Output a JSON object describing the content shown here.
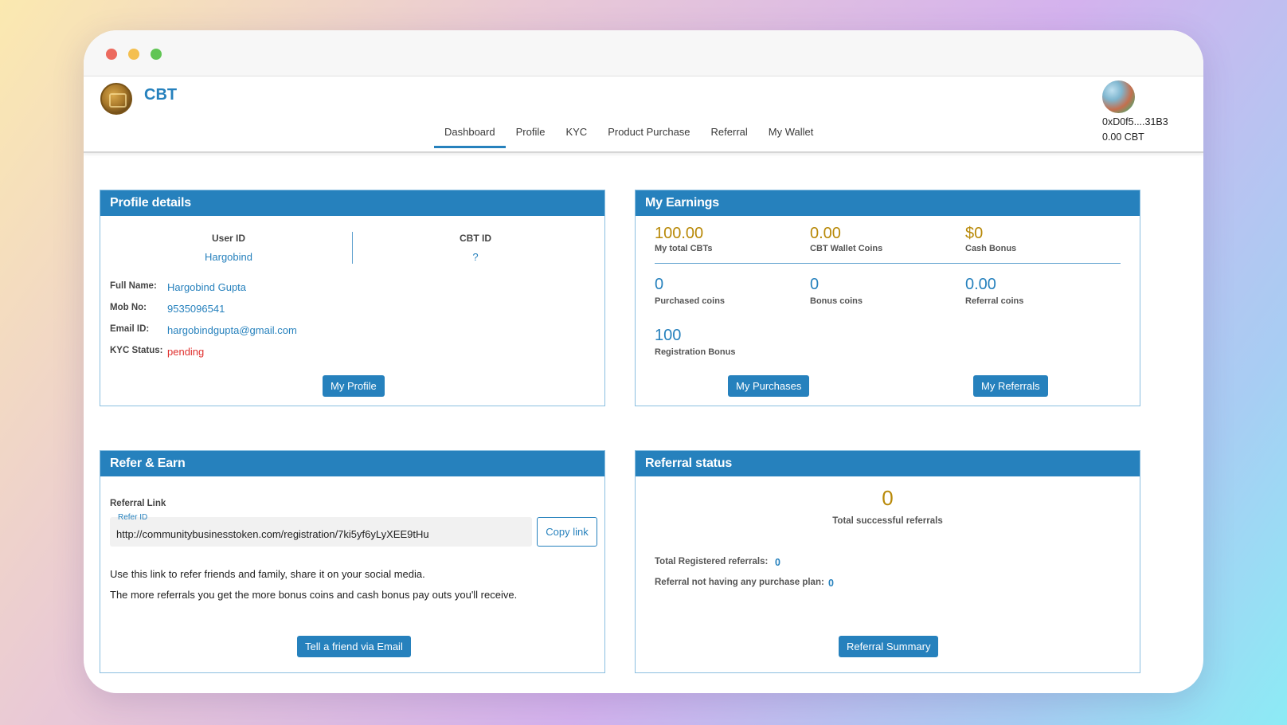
{
  "app": {
    "brand": "CBT",
    "nav": [
      "Dashboard",
      "Profile",
      "KYC",
      "Product Purchase",
      "Referral",
      "My Wallet"
    ],
    "active_nav": "Dashboard",
    "wallet_address": "0xD0f5....31B3",
    "wallet_balance": "0.00 CBT"
  },
  "profile": {
    "title": "Profile details",
    "user_id_label": "User ID",
    "user_id": "Hargobind",
    "cbt_id_label": "CBT ID",
    "cbt_id": "?",
    "full_name_label": "Full Name:",
    "full_name": "Hargobind Gupta",
    "mob_label": "Mob No:",
    "mob": "9535096541",
    "email_label": "Email ID:",
    "email": "hargobindgupta@gmail.com",
    "kyc_label": "KYC Status:",
    "kyc": "pending",
    "button": "My Profile"
  },
  "earnings": {
    "title": "My Earnings",
    "total_cbts": "100.00",
    "total_cbts_label": "My total CBTs",
    "wallet_coins": "0.00",
    "wallet_coins_label": "CBT Wallet Coins",
    "cash_bonus": "$0",
    "cash_bonus_label": "Cash Bonus",
    "purchased": "0",
    "purchased_label": "Purchased coins",
    "bonus": "0",
    "bonus_label": "Bonus coins",
    "referral": "0.00",
    "referral_label": "Referral coins",
    "registration": "100",
    "registration_label": "Registration Bonus",
    "btn_purchases": "My Purchases",
    "btn_referrals": "My Referrals"
  },
  "refer": {
    "title": "Refer & Earn",
    "link_label": "Referral Link",
    "refer_id_label": "Refer ID",
    "link": "http://communitybusinesstoken.com/registration/7ki5yf6yLyXEE9tHu",
    "copy_button": "Copy link",
    "text1": "Use this link to refer friends and family, share it on your social media.",
    "text2": "The more referrals you get the more bonus coins and cash bonus pay outs you'll receive.",
    "email_button": "Tell a friend via Email"
  },
  "referral_status": {
    "title": "Referral status",
    "total_successful": "0",
    "total_successful_label": "Total successful referrals",
    "registered_label": "Total Registered referrals:",
    "registered": "0",
    "no_plan_label": "Referral not having any purchase plan:",
    "no_plan": "0",
    "button": "Referral Summary"
  },
  "colors": {
    "primary": "#2681bd",
    "gold": "#b88908",
    "danger": "#e0302e"
  }
}
